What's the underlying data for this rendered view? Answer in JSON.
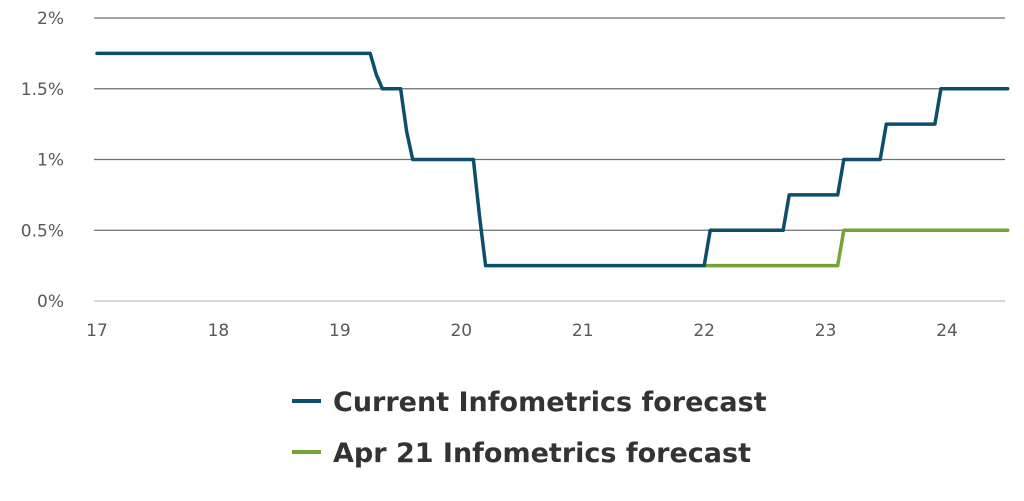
{
  "chart_data": {
    "type": "line",
    "x_tick_labels": [
      "17",
      "18",
      "19",
      "20",
      "21",
      "22",
      "23",
      "24"
    ],
    "x_tick_values": [
      17,
      18,
      19,
      20,
      21,
      22,
      23,
      24
    ],
    "y_tick_labels": [
      "0%",
      "0.5%",
      "1%",
      "1.5%",
      "2%"
    ],
    "y_tick_values": [
      0,
      0.5,
      1,
      1.5,
      2
    ],
    "xlim": [
      17,
      24.5
    ],
    "ylim": [
      0,
      2
    ],
    "grid": "horizontal",
    "legend_position": "bottom-center",
    "series": [
      {
        "name": "Current Infometrics forecast",
        "color": "#0d4f6a",
        "x": [
          17,
          19.25,
          19.3,
          19.35,
          19.5,
          19.55,
          19.6,
          19.65,
          20.1,
          20.15,
          20.2,
          20.25,
          22.0,
          22.05,
          22.1,
          22.65,
          22.7,
          22.75,
          23.1,
          23.15,
          23.2,
          23.45,
          23.5,
          23.55,
          23.9,
          23.95,
          24.0,
          24.5
        ],
        "y": [
          1.75,
          1.75,
          1.6,
          1.5,
          1.5,
          1.2,
          1.0,
          1.0,
          1.0,
          0.6,
          0.25,
          0.25,
          0.25,
          0.5,
          0.5,
          0.5,
          0.75,
          0.75,
          0.75,
          1.0,
          1.0,
          1.0,
          1.25,
          1.25,
          1.25,
          1.5,
          1.5,
          1.5
        ]
      },
      {
        "name": "Apr 21 Infometrics forecast",
        "color": "#76a338",
        "x": [
          22.0,
          23.1,
          23.15,
          23.2,
          24.5
        ],
        "y": [
          0.25,
          0.25,
          0.5,
          0.5,
          0.5
        ]
      }
    ]
  }
}
